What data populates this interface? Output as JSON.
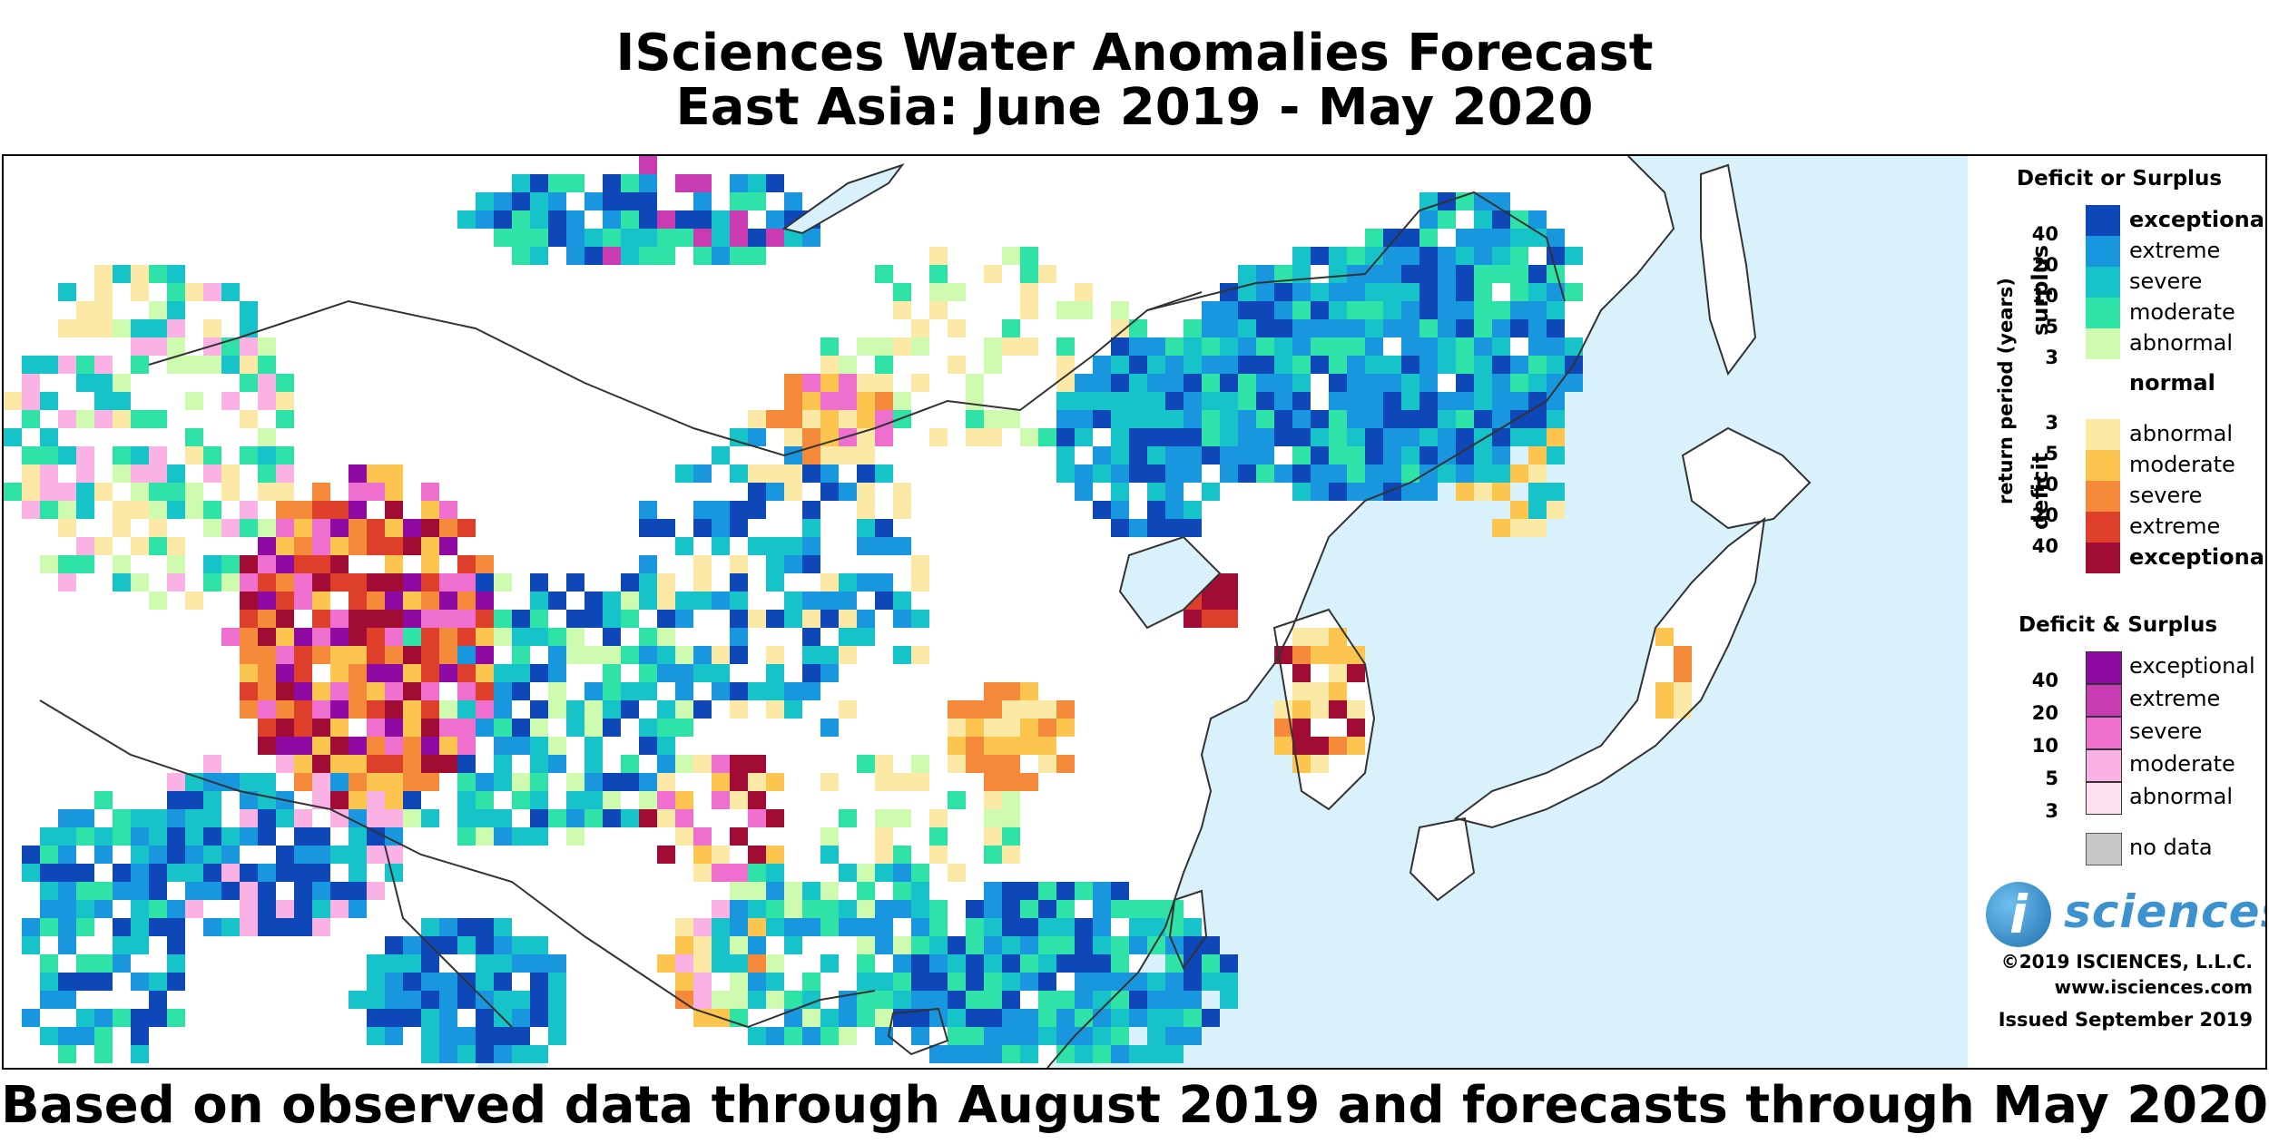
{
  "title": {
    "line1": "ISciences Water Anomalies Forecast",
    "line2": "East Asia: June 2019 - May 2020"
  },
  "subtitle": "Based on observed data through August 2019 and forecasts through May 2020",
  "map": {
    "region": "East Asia",
    "ocean_color": "#d8f1fb",
    "land_color": "#ffffff"
  },
  "legend": {
    "deficit_or_surplus": {
      "heading": "Deficit or Surplus",
      "axis_label": "return period (years)",
      "surplus_label": "surplus",
      "deficit_label": "deficit",
      "surplus": [
        {
          "label": "exceptional",
          "bold": true,
          "color": "#0d47b8",
          "bound": "40"
        },
        {
          "label": "extreme",
          "bold": false,
          "color": "#1896de",
          "bound": "20"
        },
        {
          "label": "severe",
          "bold": false,
          "color": "#16c3c8",
          "bound": "10"
        },
        {
          "label": "moderate",
          "bold": false,
          "color": "#2fe3a8",
          "bound": "5"
        },
        {
          "label": "abnormal",
          "bold": false,
          "color": "#cffbb0",
          "bound": "3"
        }
      ],
      "normal": {
        "label": "normal",
        "color": "#ffffff"
      },
      "deficit": [
        {
          "label": "abnormal",
          "bold": false,
          "color": "#fde9a6",
          "bound": "3"
        },
        {
          "label": "moderate",
          "bold": false,
          "color": "#fbc54f",
          "bound": "5"
        },
        {
          "label": "severe",
          "bold": false,
          "color": "#f58a3a",
          "bound": "10"
        },
        {
          "label": "extreme",
          "bold": false,
          "color": "#dd3f2b",
          "bound": "20"
        },
        {
          "label": "exceptional",
          "bold": true,
          "color": "#a10c35",
          "bound": "40"
        }
      ]
    },
    "deficit_and_surplus": {
      "heading": "Deficit & Surplus",
      "items": [
        {
          "label": "exceptional",
          "color": "#8e0aa3",
          "bound": "40"
        },
        {
          "label": "extreme",
          "color": "#c83bb3",
          "bound": "20"
        },
        {
          "label": "severe",
          "color": "#ee6fcd",
          "bound": "10"
        },
        {
          "label": "moderate",
          "color": "#f9b2e3",
          "bound": "5"
        },
        {
          "label": "abnormal",
          "color": "#fde1f1",
          "bound": "3"
        }
      ]
    },
    "no_data": {
      "label": "no data",
      "color": "#c8c8c8"
    }
  },
  "branding": {
    "logo_letter": "i",
    "logo_word": "sciences",
    "copyright": "©2019 ISCIENCES, L.L.C.",
    "website": "www.isciences.com",
    "issued": "Issued September 2019"
  }
}
